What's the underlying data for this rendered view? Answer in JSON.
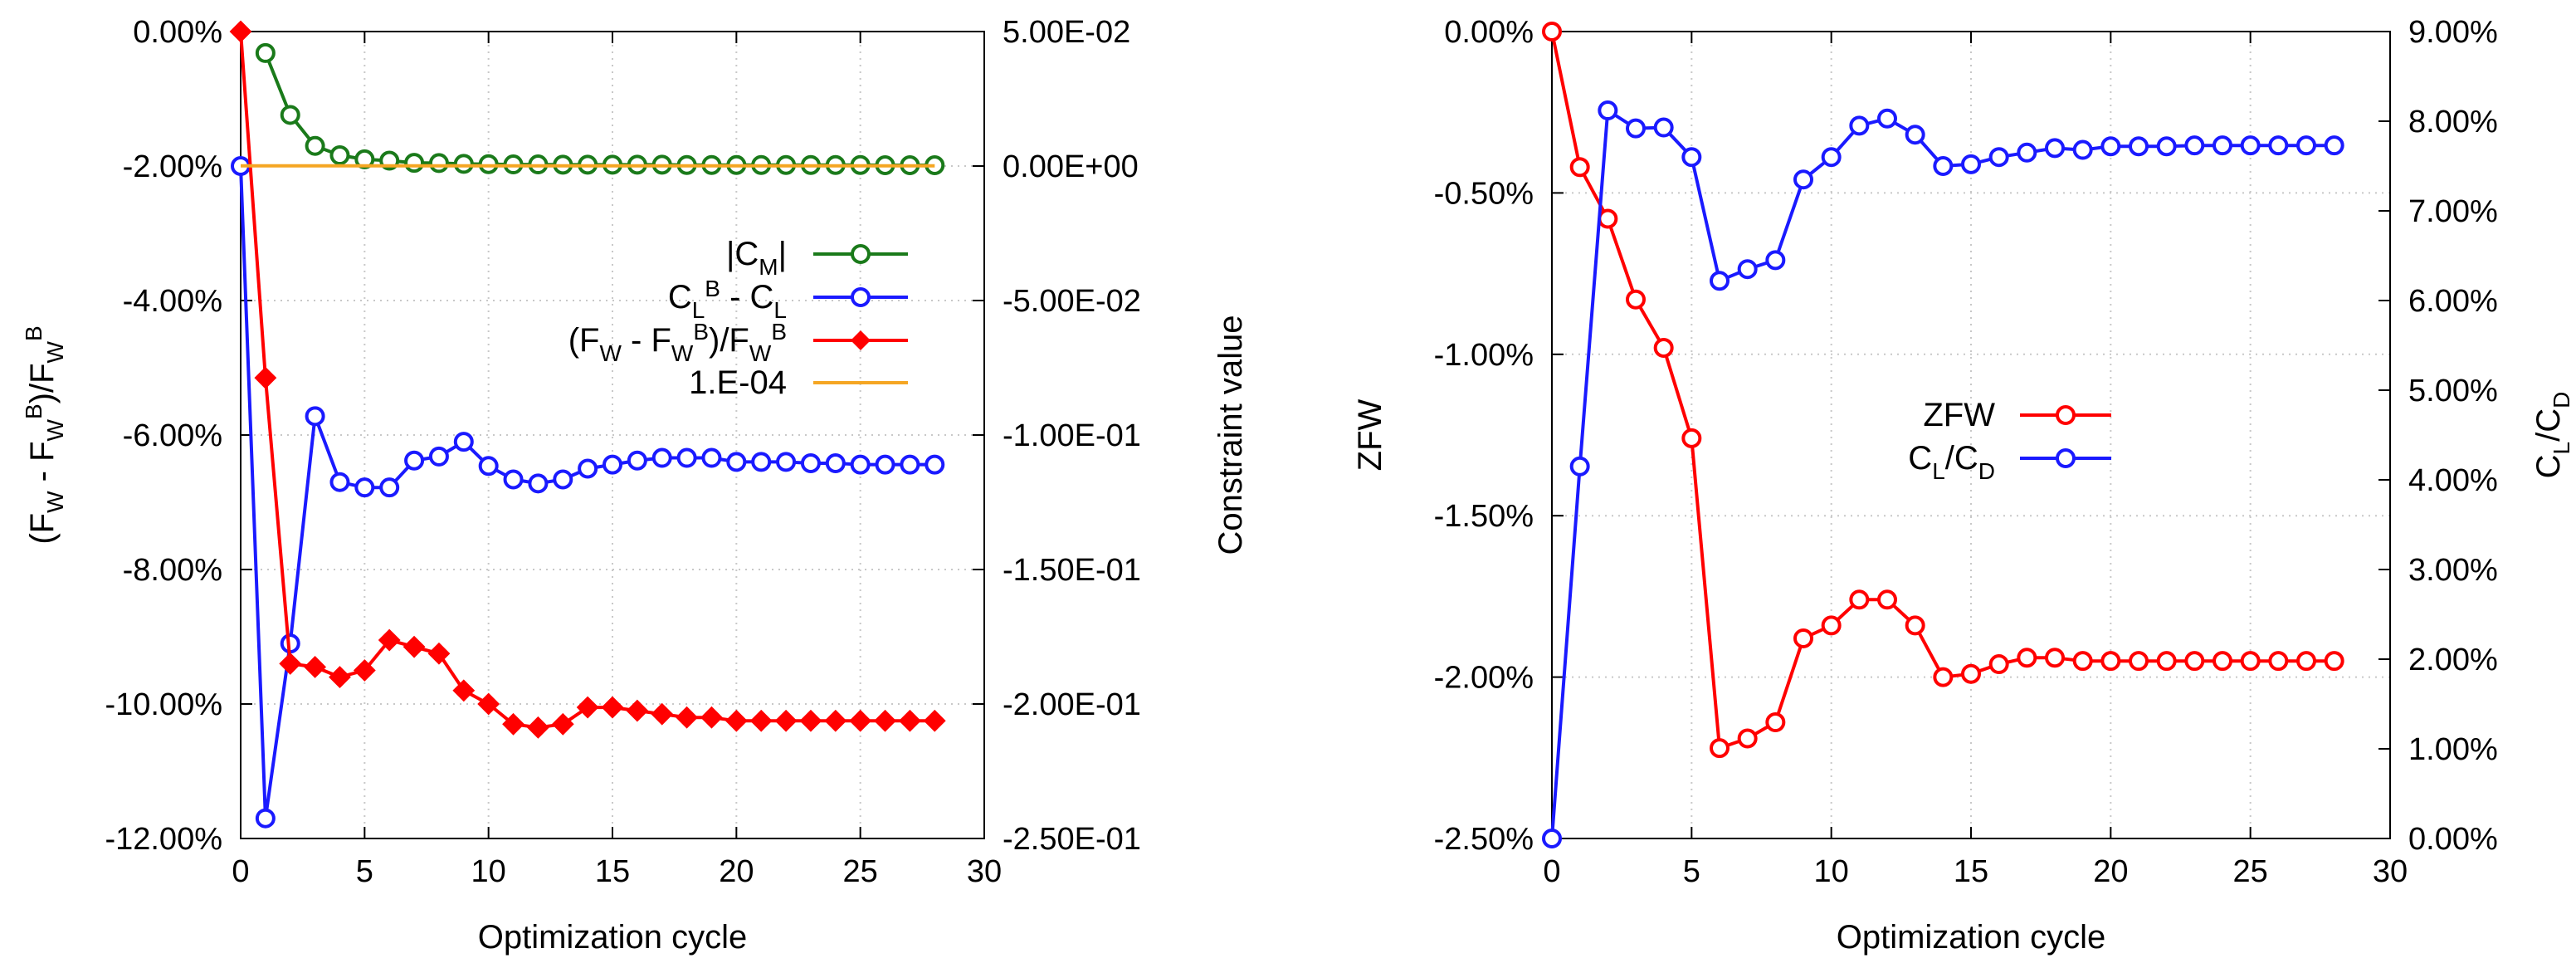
{
  "chart_data": [
    {
      "type": "line",
      "xlabel": "Optimization cycle",
      "ylabel_parts": [
        "(F",
        "W",
        " - F",
        "W",
        "B",
        ")/F",
        "W",
        "B"
      ],
      "y2label": "Constraint value",
      "xlim": [
        0,
        30
      ],
      "ylim": [
        -12,
        0
      ],
      "y2lim": [
        -0.25,
        0.05
      ],
      "x_ticks": [
        "0",
        "5",
        "10",
        "15",
        "20",
        "25",
        "30"
      ],
      "y_ticks": [
        "0.00%",
        "-2.00%",
        "-4.00%",
        "-6.00%",
        "-8.00%",
        "-10.00%",
        "-12.00%"
      ],
      "y2_ticks": [
        "5.00E-02",
        "0.00E+00",
        "-5.00E-02",
        "-1.00E-01",
        "-1.50E-01",
        "-2.00E-01",
        "-2.50E-01"
      ],
      "grid": true,
      "legend_position": "center-right",
      "series": [
        {
          "name": "|CM|",
          "label_parts": [
            "|C",
            "M",
            "|"
          ],
          "axis": "y2",
          "color": "#1a7a1a",
          "marker": "open-circle",
          "x": [
            1,
            2,
            3,
            4,
            5,
            6,
            7,
            8,
            9,
            10,
            11,
            12,
            13,
            14,
            15,
            16,
            17,
            18,
            19,
            20,
            21,
            22,
            23,
            24,
            25,
            26,
            27,
            28
          ],
          "values": [
            0.042,
            0.019,
            0.0075,
            0.004,
            0.0025,
            0.002,
            0.0012,
            0.0011,
            0.0008,
            0.0007,
            0.0006,
            0.0006,
            0.0005,
            0.0005,
            0.0005,
            0.0005,
            0.0005,
            0.0004,
            0.0004,
            0.0004,
            0.0004,
            0.0004,
            0.0004,
            0.0004,
            0.0004,
            0.0003,
            0.0003,
            0.0003
          ]
        },
        {
          "name": "CL^B - CL",
          "label_parts": [
            "C",
            "L",
            "B",
            " - C",
            "L"
          ],
          "axis": "y2",
          "color": "#1a1aff",
          "marker": "open-circle",
          "x": [
            0,
            1,
            2,
            3,
            4,
            5,
            6,
            7,
            8,
            9,
            10,
            11,
            12,
            13,
            14,
            15,
            16,
            17,
            18,
            19,
            20,
            21,
            22,
            23,
            24,
            25,
            26,
            27,
            28
          ],
          "values": [
            0.0,
            -0.2425,
            -0.1775,
            -0.093,
            -0.1175,
            -0.1195,
            -0.1195,
            -0.1095,
            -0.108,
            -0.1025,
            -0.1115,
            -0.1165,
            -0.118,
            -0.1165,
            -0.1125,
            -0.111,
            -0.1095,
            -0.1085,
            -0.1085,
            -0.1085,
            -0.11,
            -0.11,
            -0.11,
            -0.1105,
            -0.1105,
            -0.111,
            -0.111,
            -0.111,
            -0.111
          ]
        },
        {
          "name": "(FW - FW^B)/FW^B",
          "label_parts": [
            "(F",
            "W",
            " - F",
            "W",
            "B",
            ")/F",
            "W",
            "B"
          ],
          "axis": "y",
          "color": "#ff0000",
          "marker": "filled-diamond",
          "x": [
            0,
            1,
            2,
            3,
            4,
            5,
            6,
            7,
            8,
            9,
            10,
            11,
            12,
            13,
            14,
            15,
            16,
            17,
            18,
            19,
            20,
            21,
            22,
            23,
            24,
            25,
            26,
            27,
            28
          ],
          "values": [
            0.0,
            -5.15,
            -9.4,
            -9.45,
            -9.6,
            -9.5,
            -9.05,
            -9.15,
            -9.25,
            -9.8,
            -10.0,
            -10.3,
            -10.35,
            -10.3,
            -10.05,
            -10.05,
            -10.1,
            -10.15,
            -10.2,
            -10.2,
            -10.25,
            -10.25,
            -10.25,
            -10.25,
            -10.25,
            -10.25,
            -10.25,
            -10.25,
            -10.25
          ]
        },
        {
          "name": "1.E-04",
          "axis": "y2",
          "color": "#f5a623",
          "marker": "none",
          "x": [
            0,
            28
          ],
          "values": [
            0.0001,
            0.0001
          ]
        }
      ]
    },
    {
      "type": "line",
      "xlabel": "Optimization cycle",
      "ylabel": "ZFW",
      "y2label_parts": [
        "C",
        "L",
        "/C",
        "D"
      ],
      "xlim": [
        0,
        30
      ],
      "ylim": [
        -2.5,
        0
      ],
      "y2lim": [
        0,
        9
      ],
      "x_ticks": [
        "0",
        "5",
        "10",
        "15",
        "20",
        "25",
        "30"
      ],
      "y_ticks": [
        "0.00%",
        "-0.50%",
        "-1.00%",
        "-1.50%",
        "-2.00%",
        "-2.50%"
      ],
      "y2_ticks": [
        "9.00%",
        "8.00%",
        "7.00%",
        "6.00%",
        "5.00%",
        "4.00%",
        "3.00%",
        "2.00%",
        "1.00%",
        "0.00%"
      ],
      "grid": true,
      "legend_position": "center",
      "series": [
        {
          "name": "ZFW",
          "label_parts": [
            "ZFW"
          ],
          "axis": "y",
          "color": "#ff0000",
          "marker": "open-circle",
          "x": [
            0,
            1,
            2,
            3,
            4,
            5,
            6,
            7,
            8,
            9,
            10,
            11,
            12,
            13,
            14,
            15,
            16,
            17,
            18,
            19,
            20,
            21,
            22,
            23,
            24,
            25,
            26,
            27,
            28
          ],
          "values": [
            0.0,
            -0.42,
            -0.58,
            -0.83,
            -0.98,
            -1.26,
            -2.22,
            -2.19,
            -2.14,
            -1.88,
            -1.84,
            -1.76,
            -1.76,
            -1.84,
            -2.0,
            -1.99,
            -1.96,
            -1.94,
            -1.94,
            -1.95,
            -1.95,
            -1.95,
            -1.95,
            -1.95,
            -1.95,
            -1.95,
            -1.95,
            -1.95,
            -1.95
          ]
        },
        {
          "name": "CL/CD",
          "label_parts": [
            "C",
            "L",
            "/C",
            "D"
          ],
          "axis": "y2",
          "color": "#1a1aff",
          "marker": "open-circle",
          "x": [
            0,
            1,
            2,
            3,
            4,
            5,
            6,
            7,
            8,
            9,
            10,
            11,
            12,
            13,
            14,
            15,
            16,
            17,
            18,
            19,
            20,
            21,
            22,
            23,
            24,
            25,
            26,
            27,
            28
          ],
          "values": [
            0.0,
            4.15,
            8.12,
            7.92,
            7.93,
            7.6,
            6.22,
            6.35,
            6.45,
            7.35,
            7.6,
            7.95,
            8.03,
            7.85,
            7.5,
            7.52,
            7.6,
            7.65,
            7.7,
            7.68,
            7.72,
            7.72,
            7.72,
            7.73,
            7.73,
            7.73,
            7.73,
            7.73,
            7.73
          ]
        }
      ]
    }
  ]
}
